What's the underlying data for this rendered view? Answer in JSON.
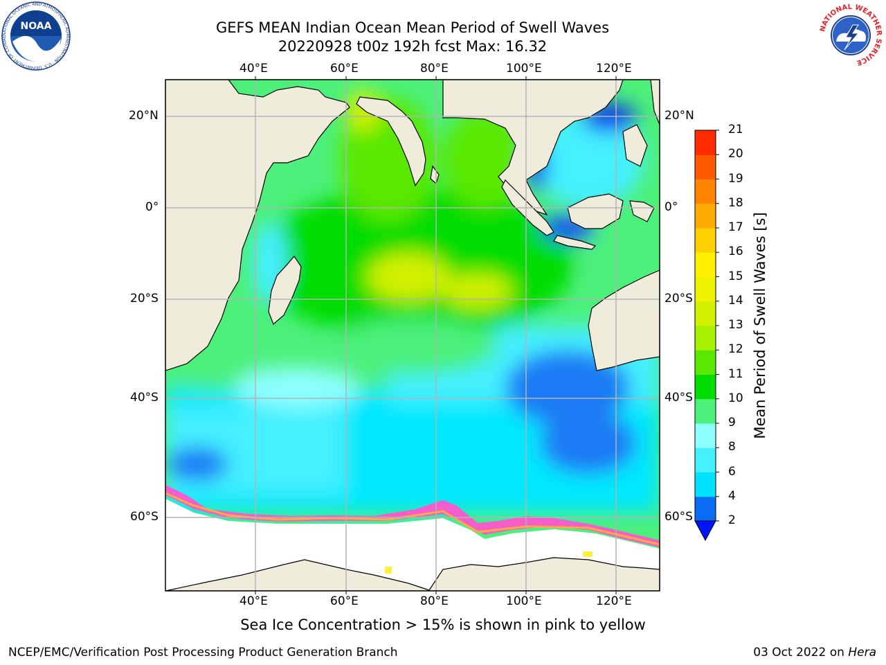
{
  "header": {
    "title_line1": "GEFS MEAN Indian Ocean Mean Period of Swell Waves",
    "title_line2": "20220928 t00z 192h fcst   Max: 16.32"
  },
  "map": {
    "lon_labels": [
      "40°E",
      "60°E",
      "80°E",
      "100°E",
      "120°E"
    ],
    "lat_labels": [
      "20°N",
      "0°",
      "20°S",
      "40°S",
      "60°S"
    ],
    "land_color": "#efecdc",
    "ice_colors": [
      "#ff55cc",
      "#ffaa44",
      "#ffee44"
    ]
  },
  "colorbar": {
    "title": "Mean Period of Swell Waves [s]",
    "labels": [
      "2",
      "4",
      "6",
      "8",
      "9",
      "10",
      "11",
      "12",
      "13",
      "14",
      "15",
      "16",
      "17",
      "18",
      "19",
      "20",
      "21"
    ],
    "colors": [
      "#0a6cf5",
      "#00e2ff",
      "#45f0ff",
      "#8effff",
      "#4cf07a",
      "#00dd00",
      "#5ae800",
      "#a6f000",
      "#d2f000",
      "#eef400",
      "#fff000",
      "#ffd000",
      "#ffaa00",
      "#ff8400",
      "#ff5a00",
      "#ff2a00"
    ],
    "under_color": "#0014ff"
  },
  "caption": "Sea Ice Concentration > 15% is shown in pink to yellow",
  "footer": {
    "left": "NCEP/EMC/Verification Post Processing Product Generation Branch",
    "right_date": "03 Oct 2022 on ",
    "right_machine": "Hera"
  },
  "logos": {
    "noaa_text": "NOAA",
    "noaa_ring": "NATIONAL OCEANIC AND ATMOSPHERIC ADMINISTRATION · U.S. DEPARTMENT OF COMMERCE",
    "nws_ring": "NATIONAL WEATHER SERVICE"
  }
}
